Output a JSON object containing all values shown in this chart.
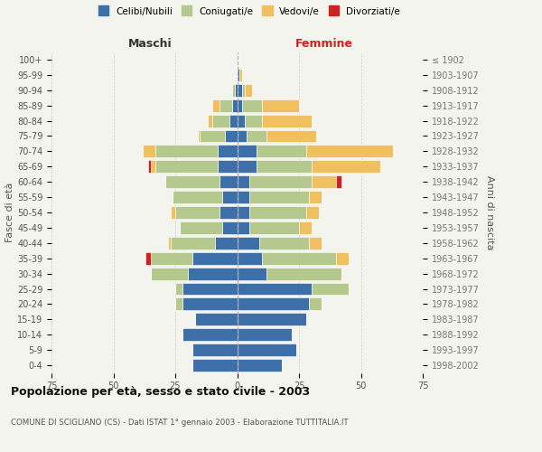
{
  "age_groups": [
    "0-4",
    "5-9",
    "10-14",
    "15-19",
    "20-24",
    "25-29",
    "30-34",
    "35-39",
    "40-44",
    "45-49",
    "50-54",
    "55-59",
    "60-64",
    "65-69",
    "70-74",
    "75-79",
    "80-84",
    "85-89",
    "90-94",
    "95-99",
    "100+"
  ],
  "birth_years": [
    "1998-2002",
    "1993-1997",
    "1988-1992",
    "1983-1987",
    "1978-1982",
    "1973-1977",
    "1968-1972",
    "1963-1967",
    "1958-1962",
    "1953-1957",
    "1948-1952",
    "1943-1947",
    "1938-1942",
    "1933-1937",
    "1928-1932",
    "1923-1927",
    "1918-1922",
    "1913-1917",
    "1908-1912",
    "1903-1907",
    "≤ 1902"
  ],
  "maschi_celibi": [
    18,
    18,
    22,
    17,
    22,
    22,
    20,
    18,
    9,
    6,
    7,
    6,
    7,
    8,
    8,
    5,
    3,
    2,
    1,
    0,
    0
  ],
  "maschi_coniugati": [
    0,
    0,
    0,
    0,
    3,
    3,
    15,
    17,
    18,
    17,
    18,
    20,
    22,
    25,
    25,
    10,
    7,
    5,
    1,
    0,
    0
  ],
  "maschi_vedovi": [
    0,
    0,
    0,
    0,
    0,
    0,
    0,
    0,
    1,
    0,
    2,
    0,
    0,
    2,
    5,
    1,
    2,
    3,
    0,
    0,
    0
  ],
  "maschi_divorziati": [
    0,
    0,
    0,
    0,
    0,
    0,
    0,
    2,
    0,
    0,
    0,
    0,
    0,
    1,
    0,
    0,
    0,
    0,
    0,
    0,
    0
  ],
  "femmine_celibi": [
    18,
    24,
    22,
    28,
    29,
    30,
    12,
    10,
    9,
    5,
    5,
    5,
    5,
    8,
    8,
    4,
    3,
    2,
    2,
    1,
    0
  ],
  "femmine_coniugati": [
    0,
    0,
    0,
    0,
    5,
    15,
    30,
    30,
    20,
    20,
    23,
    24,
    25,
    22,
    20,
    8,
    7,
    8,
    1,
    0,
    0
  ],
  "femmine_vedovi": [
    0,
    0,
    0,
    0,
    0,
    0,
    0,
    5,
    5,
    5,
    5,
    5,
    10,
    28,
    35,
    20,
    20,
    15,
    3,
    1,
    0
  ],
  "femmine_divorziati": [
    0,
    0,
    0,
    0,
    0,
    0,
    0,
    0,
    0,
    0,
    0,
    0,
    2,
    0,
    0,
    0,
    0,
    0,
    0,
    0,
    0
  ],
  "color_celibi": "#3d6fa8",
  "color_coniugati": "#b5c98e",
  "color_vedovi": "#f0c060",
  "color_divorziati": "#cc2222",
  "xlim": 75,
  "bg_color": "#f4f4ee",
  "title": "Popolazione per età, sesso e stato civile - 2003",
  "subtitle": "COMUNE DI SCIGLIANO (CS) - Dati ISTAT 1° gennaio 2003 - Elaborazione TUTTITALIA.IT",
  "legend_labels": [
    "Celibi/Nubili",
    "Coniugati/e",
    "Vedovi/e",
    "Divorziati/e"
  ],
  "label_maschi": "Maschi",
  "label_femmine": "Femmine",
  "label_fasce": "Fasce di età",
  "label_anni": "Anni di nascita"
}
